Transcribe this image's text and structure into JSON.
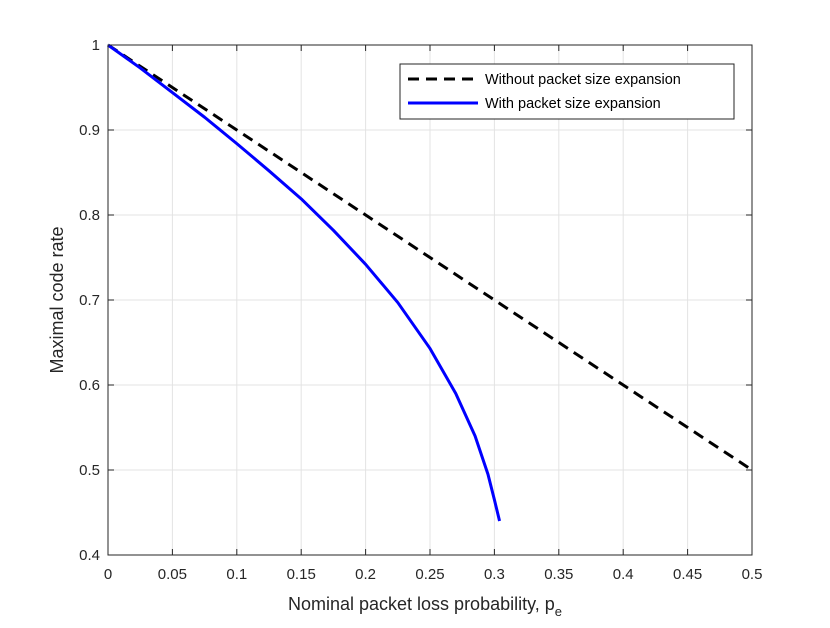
{
  "chart_data": {
    "type": "line",
    "xlabel": "Nominal packet loss probability, p",
    "xlabel_sub": "e",
    "ylabel": "Maximal code rate",
    "xlim": [
      0,
      0.5
    ],
    "ylim": [
      0.4,
      1.0
    ],
    "x_ticks": [
      "0",
      "0.05",
      "0.1",
      "0.15",
      "0.2",
      "0.25",
      "0.3",
      "0.35",
      "0.4",
      "0.45",
      "0.5"
    ],
    "y_ticks": [
      "0.4",
      "0.5",
      "0.6",
      "0.7",
      "0.8",
      "0.9",
      "1"
    ],
    "grid": true,
    "legend_position": "top-right",
    "series": [
      {
        "name": "Without packet size expansion",
        "color": "#000000",
        "style": "dashed",
        "points": [
          [
            0,
            1.0
          ],
          [
            0.5,
            0.5
          ]
        ]
      },
      {
        "name": "With packet size expansion",
        "color": "#0000ff",
        "style": "solid",
        "points": [
          [
            0,
            1.0
          ],
          [
            0.025,
            0.973
          ],
          [
            0.05,
            0.944
          ],
          [
            0.075,
            0.915
          ],
          [
            0.1,
            0.884
          ],
          [
            0.125,
            0.852
          ],
          [
            0.15,
            0.819
          ],
          [
            0.175,
            0.782
          ],
          [
            0.2,
            0.742
          ],
          [
            0.225,
            0.697
          ],
          [
            0.25,
            0.643
          ],
          [
            0.27,
            0.59
          ],
          [
            0.285,
            0.54
          ],
          [
            0.295,
            0.495
          ],
          [
            0.3,
            0.465
          ],
          [
            0.304,
            0.44
          ]
        ]
      }
    ]
  }
}
